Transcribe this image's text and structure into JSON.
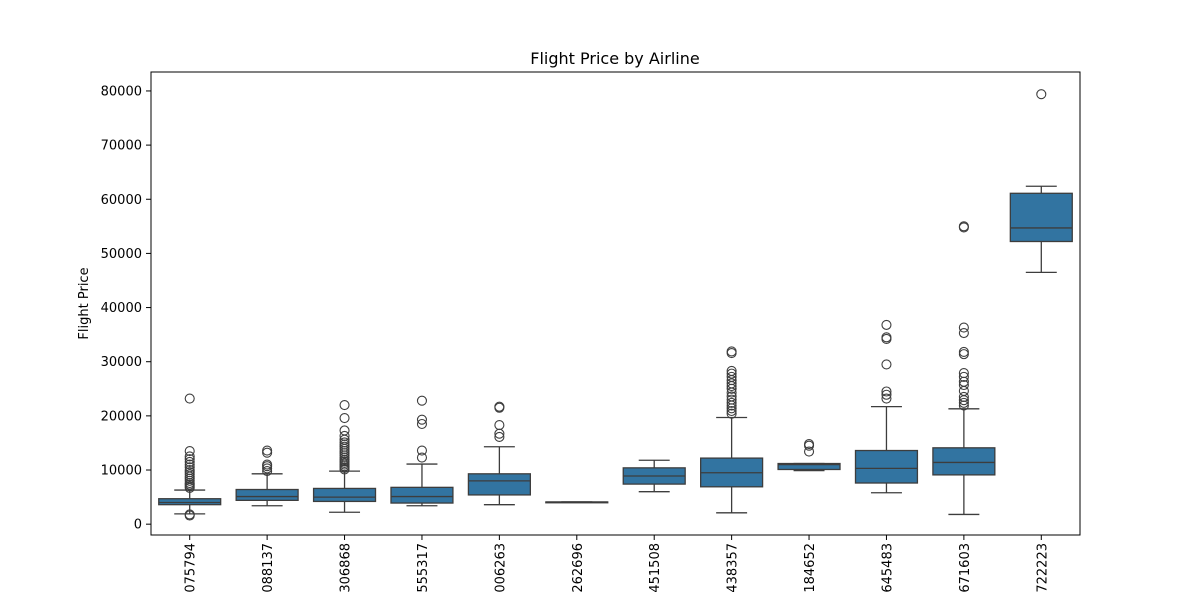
{
  "chart_data": {
    "type": "box",
    "title": "Flight Price by Airline",
    "xlabel": "",
    "ylabel": "Flight Price",
    "ylim": [
      -2000,
      83500
    ],
    "yticks": [
      0,
      10000,
      20000,
      30000,
      40000,
      50000,
      60000,
      70000,
      80000
    ],
    "grid": false,
    "legend": "none",
    "box_color": "#3274a1",
    "edge_color": "#3d3d3d",
    "categories": [
      "075794",
      "088137",
      "306868",
      "555317",
      "006263",
      "262696",
      "451508",
      "438357",
      "184652",
      "645483",
      "671603",
      "722223"
    ],
    "boxes": [
      {
        "category": "075794",
        "whisker_low": 1900,
        "q1": 3600,
        "median": 4000,
        "q3": 4700,
        "whisker_high": 6300,
        "outliers": [
          1600,
          1800,
          6700,
          7000,
          7300,
          7600,
          8000,
          8400,
          8800,
          9200,
          9600,
          10000,
          10500,
          11000,
          11500,
          12000,
          12500,
          13500,
          23200
        ]
      },
      {
        "category": "088137",
        "whisker_low": 3400,
        "q1": 4400,
        "median": 5100,
        "q3": 6400,
        "whisker_high": 9300,
        "outliers": [
          9800,
          10300,
          10700,
          11000,
          13200,
          13600
        ]
      },
      {
        "category": "306868",
        "whisker_low": 2200,
        "q1": 4200,
        "median": 5000,
        "q3": 6600,
        "whisker_high": 9800,
        "outliers": [
          10100,
          10400,
          10700,
          11000,
          11300,
          11600,
          11900,
          12300,
          12700,
          13100,
          13500,
          13900,
          14300,
          14700,
          15100,
          15600,
          16300,
          17300,
          19600,
          22000
        ]
      },
      {
        "category": "555317",
        "whisker_low": 3400,
        "q1": 3900,
        "median": 5100,
        "q3": 6800,
        "whisker_high": 11100,
        "outliers": [
          12300,
          13600,
          18500,
          19300,
          22800
        ]
      },
      {
        "category": "006263",
        "whisker_low": 3600,
        "q1": 5400,
        "median": 8000,
        "q3": 9300,
        "whisker_high": 14300,
        "outliers": [
          16100,
          16700,
          18300,
          21500,
          21700
        ]
      },
      {
        "category": "262696",
        "whisker_low": 4100,
        "q1": 4100,
        "median": 4100,
        "q3": 4100,
        "whisker_high": 4100,
        "outliers": []
      },
      {
        "category": "451508",
        "whisker_low": 6000,
        "q1": 7400,
        "median": 8900,
        "q3": 10400,
        "whisker_high": 11800,
        "outliers": []
      },
      {
        "category": "438357",
        "whisker_low": 2100,
        "q1": 6900,
        "median": 9500,
        "q3": 12200,
        "whisker_high": 19700,
        "outliers": [
          20400,
          20900,
          21400,
          21900,
          22400,
          23000,
          23600,
          24300,
          25000,
          25500,
          26000,
          26600,
          27200,
          27800,
          28300,
          31600,
          31900
        ]
      },
      {
        "category": "184652",
        "whisker_low": 9900,
        "q1": 10100,
        "median": 11000,
        "q3": 11200,
        "whisker_high": 11200,
        "outliers": [
          13400,
          14500,
          14800
        ]
      },
      {
        "category": "645483",
        "whisker_low": 5800,
        "q1": 7600,
        "median": 10300,
        "q3": 13600,
        "whisker_high": 21700,
        "outliers": [
          23200,
          23900,
          24500,
          29500,
          34200,
          34500,
          36800
        ]
      },
      {
        "category": "671603",
        "whisker_low": 1800,
        "q1": 9100,
        "median": 11400,
        "q3": 14100,
        "whisker_high": 21300,
        "outliers": [
          21900,
          22400,
          22900,
          23500,
          24600,
          25700,
          26300,
          27200,
          27900,
          31400,
          31800,
          35300,
          36300,
          54800,
          55000
        ]
      },
      {
        "category": "722223",
        "whisker_low": 46500,
        "q1": 52200,
        "median": 54700,
        "q3": 61100,
        "whisker_high": 62400,
        "outliers": [
          79400
        ]
      }
    ]
  }
}
